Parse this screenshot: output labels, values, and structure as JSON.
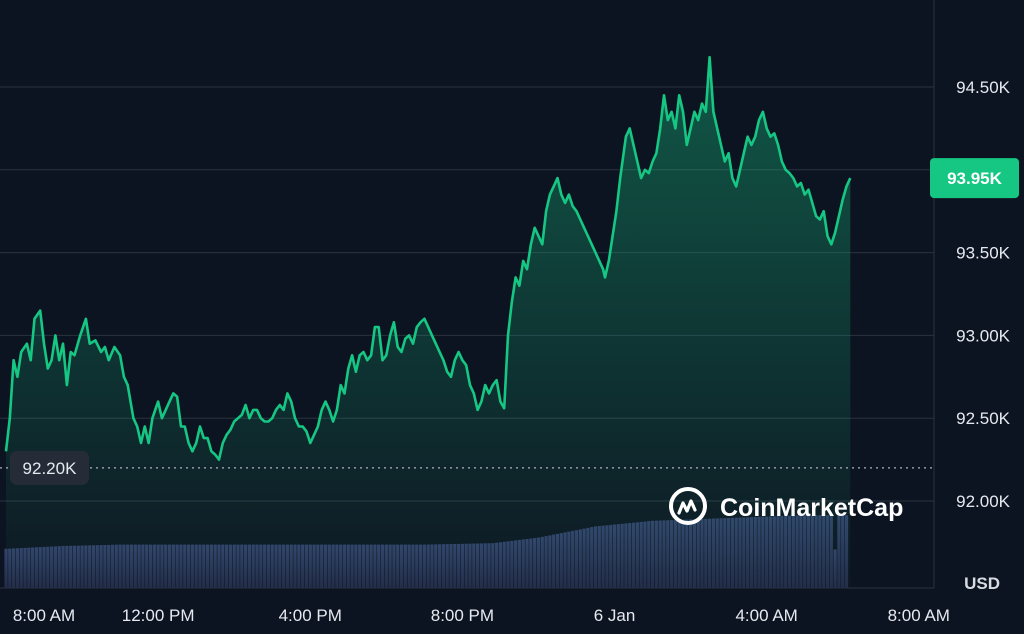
{
  "watermark": {
    "text": "CoinMarketCap",
    "icon": "coinmarketcap-logo-icon"
  },
  "colors": {
    "background": "#0d1421",
    "line": "#16c784",
    "grid": "#2a3240",
    "volume": "#2b3356",
    "badge_bg": "#16c784",
    "badge_text": "#0d1421",
    "baseline_badge_bg": "#252c38"
  },
  "chart_data": {
    "type": "area",
    "xlabel": "",
    "ylabel": "USD",
    "ylim": [
      91.8,
      94.8
    ],
    "y_tick_labels": [
      "94.50K",
      "94.00K",
      "93.50K",
      "93.00K",
      "92.50K",
      "92.00K"
    ],
    "y_tick_values": [
      94.5,
      94.0,
      93.5,
      93.0,
      92.5,
      92.0
    ],
    "x_tick_labels": [
      "8:00 AM",
      "12:00 PM",
      "4:00 PM",
      "8:00 PM",
      "6 Jan",
      "4:00 AM",
      "8:00 AM"
    ],
    "x_tick_hours": [
      0,
      4,
      8,
      12,
      16,
      20,
      24
    ],
    "x_range_hours": [
      0,
      24.4
    ],
    "current_price_label": "93.95K",
    "current_price": 93.95,
    "baseline_label": "92.20K",
    "baseline": 92.2,
    "grid": true,
    "series": [
      {
        "values": [
          [
            0.0,
            92.3
          ],
          [
            0.1,
            92.5
          ],
          [
            0.2,
            92.85
          ],
          [
            0.3,
            92.75
          ],
          [
            0.4,
            92.9
          ],
          [
            0.55,
            92.95
          ],
          [
            0.65,
            92.85
          ],
          [
            0.75,
            93.1
          ],
          [
            0.9,
            93.15
          ],
          [
            1.0,
            92.95
          ],
          [
            1.1,
            92.8
          ],
          [
            1.2,
            92.85
          ],
          [
            1.3,
            93.0
          ],
          [
            1.4,
            92.85
          ],
          [
            1.5,
            92.95
          ],
          [
            1.6,
            92.7
          ],
          [
            1.7,
            92.9
          ],
          [
            1.8,
            92.88
          ],
          [
            1.95,
            93.0
          ],
          [
            2.1,
            93.1
          ],
          [
            2.2,
            92.95
          ],
          [
            2.35,
            92.97
          ],
          [
            2.5,
            92.9
          ],
          [
            2.6,
            92.93
          ],
          [
            2.7,
            92.85
          ],
          [
            2.85,
            92.93
          ],
          [
            3.0,
            92.88
          ],
          [
            3.1,
            92.75
          ],
          [
            3.2,
            92.7
          ],
          [
            3.35,
            92.5
          ],
          [
            3.45,
            92.45
          ],
          [
            3.55,
            92.35
          ],
          [
            3.65,
            92.45
          ],
          [
            3.75,
            92.35
          ],
          [
            3.85,
            92.5
          ],
          [
            4.0,
            92.6
          ],
          [
            4.1,
            92.5
          ],
          [
            4.2,
            92.55
          ],
          [
            4.3,
            92.6
          ],
          [
            4.4,
            92.65
          ],
          [
            4.5,
            92.63
          ],
          [
            4.6,
            92.45
          ],
          [
            4.7,
            92.45
          ],
          [
            4.8,
            92.35
          ],
          [
            4.9,
            92.3
          ],
          [
            5.0,
            92.35
          ],
          [
            5.1,
            92.45
          ],
          [
            5.2,
            92.38
          ],
          [
            5.3,
            92.38
          ],
          [
            5.4,
            92.3
          ],
          [
            5.5,
            92.28
          ],
          [
            5.6,
            92.25
          ],
          [
            5.7,
            92.35
          ],
          [
            5.8,
            92.4
          ],
          [
            5.9,
            92.43
          ],
          [
            6.0,
            92.48
          ],
          [
            6.1,
            92.5
          ],
          [
            6.2,
            92.52
          ],
          [
            6.3,
            92.58
          ],
          [
            6.4,
            92.5
          ],
          [
            6.5,
            92.55
          ],
          [
            6.6,
            92.55
          ],
          [
            6.7,
            92.5
          ],
          [
            6.8,
            92.48
          ],
          [
            6.9,
            92.48
          ],
          [
            7.0,
            92.5
          ],
          [
            7.1,
            92.55
          ],
          [
            7.2,
            92.58
          ],
          [
            7.3,
            92.55
          ],
          [
            7.4,
            92.65
          ],
          [
            7.5,
            92.6
          ],
          [
            7.6,
            92.5
          ],
          [
            7.7,
            92.45
          ],
          [
            7.8,
            92.45
          ],
          [
            7.9,
            92.42
          ],
          [
            8.0,
            92.35
          ],
          [
            8.1,
            92.4
          ],
          [
            8.2,
            92.45
          ],
          [
            8.3,
            92.55
          ],
          [
            8.4,
            92.6
          ],
          [
            8.5,
            92.55
          ],
          [
            8.6,
            92.48
          ],
          [
            8.7,
            92.55
          ],
          [
            8.8,
            92.7
          ],
          [
            8.9,
            92.65
          ],
          [
            9.0,
            92.8
          ],
          [
            9.1,
            92.88
          ],
          [
            9.2,
            92.78
          ],
          [
            9.3,
            92.88
          ],
          [
            9.4,
            92.9
          ],
          [
            9.5,
            92.85
          ],
          [
            9.6,
            92.88
          ],
          [
            9.7,
            93.05
          ],
          [
            9.8,
            93.05
          ],
          [
            9.9,
            92.85
          ],
          [
            10.0,
            92.88
          ],
          [
            10.1,
            93.0
          ],
          [
            10.2,
            93.08
          ],
          [
            10.3,
            92.93
          ],
          [
            10.4,
            92.9
          ],
          [
            10.5,
            92.98
          ],
          [
            10.6,
            93.0
          ],
          [
            10.7,
            92.95
          ],
          [
            10.8,
            93.05
          ],
          [
            10.9,
            93.08
          ],
          [
            11.0,
            93.1
          ],
          [
            11.1,
            93.05
          ],
          [
            11.2,
            93.0
          ],
          [
            11.3,
            92.95
          ],
          [
            11.4,
            92.9
          ],
          [
            11.5,
            92.85
          ],
          [
            11.6,
            92.78
          ],
          [
            11.7,
            92.75
          ],
          [
            11.8,
            92.85
          ],
          [
            11.9,
            92.9
          ],
          [
            12.0,
            92.85
          ],
          [
            12.1,
            92.82
          ],
          [
            12.2,
            92.7
          ],
          [
            12.3,
            92.65
          ],
          [
            12.4,
            92.55
          ],
          [
            12.5,
            92.6
          ],
          [
            12.6,
            92.7
          ],
          [
            12.7,
            92.65
          ],
          [
            12.8,
            92.7
          ],
          [
            12.9,
            92.73
          ],
          [
            13.0,
            92.6
          ],
          [
            13.1,
            92.56
          ],
          [
            13.2,
            93.0
          ],
          [
            13.3,
            93.2
          ],
          [
            13.4,
            93.35
          ],
          [
            13.5,
            93.3
          ],
          [
            13.6,
            93.45
          ],
          [
            13.7,
            93.4
          ],
          [
            13.8,
            93.55
          ],
          [
            13.9,
            93.65
          ],
          [
            14.0,
            93.6
          ],
          [
            14.1,
            93.55
          ],
          [
            14.2,
            93.75
          ],
          [
            14.3,
            93.85
          ],
          [
            14.4,
            93.9
          ],
          [
            14.5,
            93.95
          ],
          [
            14.6,
            93.85
          ],
          [
            14.7,
            93.8
          ],
          [
            14.8,
            93.85
          ],
          [
            14.9,
            93.78
          ],
          [
            15.0,
            93.75
          ],
          [
            15.1,
            93.7
          ],
          [
            15.2,
            93.65
          ],
          [
            15.3,
            93.6
          ],
          [
            15.4,
            93.55
          ],
          [
            15.5,
            93.5
          ],
          [
            15.6,
            93.45
          ],
          [
            15.7,
            93.4
          ],
          [
            15.75,
            93.35
          ],
          [
            15.85,
            93.45
          ],
          [
            15.95,
            93.6
          ],
          [
            16.05,
            93.75
          ],
          [
            16.15,
            93.95
          ],
          [
            16.3,
            94.2
          ],
          [
            16.4,
            94.25
          ],
          [
            16.5,
            94.15
          ],
          [
            16.6,
            94.05
          ],
          [
            16.7,
            93.95
          ],
          [
            16.8,
            94.0
          ],
          [
            16.9,
            93.98
          ],
          [
            17.0,
            94.05
          ],
          [
            17.1,
            94.1
          ],
          [
            17.2,
            94.25
          ],
          [
            17.3,
            94.45
          ],
          [
            17.4,
            94.3
          ],
          [
            17.5,
            94.35
          ],
          [
            17.6,
            94.25
          ],
          [
            17.7,
            94.45
          ],
          [
            17.8,
            94.35
          ],
          [
            17.9,
            94.15
          ],
          [
            18.0,
            94.25
          ],
          [
            18.1,
            94.35
          ],
          [
            18.2,
            94.3
          ],
          [
            18.3,
            94.4
          ],
          [
            18.4,
            94.35
          ],
          [
            18.5,
            94.68
          ],
          [
            18.6,
            94.35
          ],
          [
            18.7,
            94.25
          ],
          [
            18.8,
            94.15
          ],
          [
            18.9,
            94.05
          ],
          [
            19.0,
            94.1
          ],
          [
            19.1,
            93.95
          ],
          [
            19.2,
            93.9
          ],
          [
            19.3,
            94.0
          ],
          [
            19.4,
            94.1
          ],
          [
            19.5,
            94.2
          ],
          [
            19.6,
            94.15
          ],
          [
            19.7,
            94.2
          ],
          [
            19.8,
            94.3
          ],
          [
            19.9,
            94.35
          ],
          [
            20.0,
            94.25
          ],
          [
            20.1,
            94.2
          ],
          [
            20.2,
            94.22
          ],
          [
            20.3,
            94.15
          ],
          [
            20.4,
            94.05
          ],
          [
            20.5,
            94.0
          ],
          [
            20.6,
            93.98
          ],
          [
            20.7,
            93.95
          ],
          [
            20.8,
            93.9
          ],
          [
            20.9,
            93.92
          ],
          [
            21.0,
            93.85
          ],
          [
            21.1,
            93.88
          ],
          [
            21.2,
            93.8
          ],
          [
            21.3,
            93.72
          ],
          [
            21.4,
            93.7
          ],
          [
            21.5,
            93.75
          ],
          [
            21.6,
            93.6
          ],
          [
            21.7,
            93.55
          ],
          [
            21.8,
            93.62
          ],
          [
            21.9,
            93.72
          ],
          [
            22.0,
            93.82
          ],
          [
            22.1,
            93.9
          ],
          [
            22.2,
            93.95
          ]
        ]
      }
    ],
    "volume_series": [
      [
        0.0,
        0.28
      ],
      [
        1.5,
        0.3
      ],
      [
        3.0,
        0.31
      ],
      [
        5.0,
        0.31
      ],
      [
        7.0,
        0.31
      ],
      [
        9.0,
        0.31
      ],
      [
        11.0,
        0.31
      ],
      [
        12.8,
        0.32
      ],
      [
        14.0,
        0.36
      ],
      [
        15.5,
        0.44
      ],
      [
        17.0,
        0.48
      ],
      [
        19.0,
        0.5
      ],
      [
        21.0,
        0.52
      ],
      [
        21.7,
        0.52
      ],
      [
        21.75,
        0.03
      ],
      [
        21.85,
        0.52
      ],
      [
        22.2,
        0.52
      ]
    ]
  }
}
